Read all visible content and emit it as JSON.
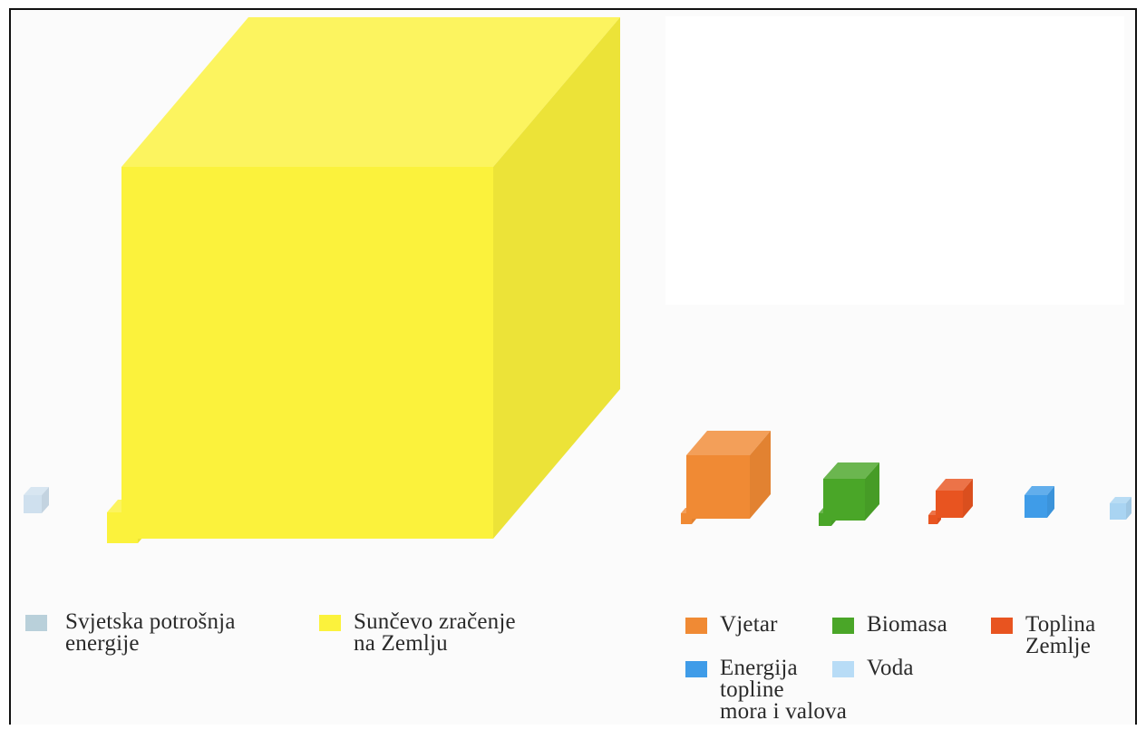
{
  "cubes": [
    {
      "name": "cube-world-consumption",
      "color": "#cfe0ee"
    },
    {
      "name": "cube-solar-radiation",
      "color": "#fbf23c"
    },
    {
      "name": "cube-wind",
      "color": "#f08a34"
    },
    {
      "name": "cube-biomass",
      "color": "#4aa628"
    },
    {
      "name": "cube-geothermal",
      "color": "#e85420"
    },
    {
      "name": "cube-ocean",
      "color": "#3f9ce8"
    },
    {
      "name": "cube-water",
      "color": "#a9d4f2"
    }
  ],
  "legend": [
    {
      "label": "Svjetska potrošnja\nenergije",
      "color": "#b9d0da"
    },
    {
      "label": "Sunčevo zračenje\nna Zemlju",
      "color": "#fbf23c"
    },
    {
      "label": "Vjetar",
      "color": "#f08a34"
    },
    {
      "label": "Biomasa",
      "color": "#4aa628"
    },
    {
      "label": "Toplina\nZemlje",
      "color": "#e85420"
    },
    {
      "label": "Energija\ntopline\nmora i valova",
      "color": "#3f9ce8"
    },
    {
      "label": "Voda",
      "color": "#b8dcf6"
    }
  ]
}
